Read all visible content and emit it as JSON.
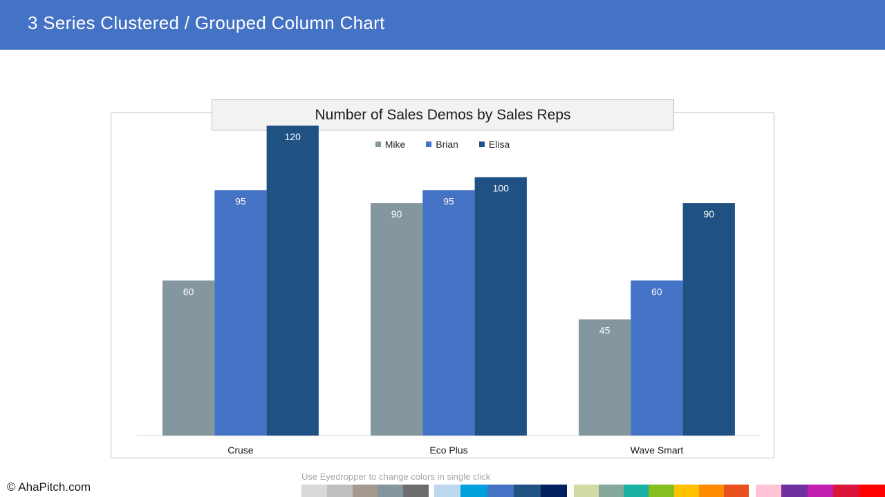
{
  "header": {
    "title": "3 Series Clustered / Grouped Column Chart"
  },
  "footer": {
    "copyright": "© AhaPitch.com",
    "eyedropper_note": "Use Eyedropper to change colors in single click"
  },
  "colors": {
    "header_bg": "#4472c4",
    "mike": "#85979e",
    "brian": "#4472c4",
    "elisa": "#1f5283"
  },
  "palette": [
    "#d9d9d9",
    "#bfbfbf",
    "#a5998e",
    "#85979e",
    "#6d6d6d",
    "#bdd7ee",
    "#00a0dc",
    "#4472c4",
    "#1f5283",
    "#002060",
    "#d3d9a5",
    "#85a89b",
    "#1ab1a5",
    "#85be1f",
    "#ffc000",
    "#ff8c00",
    "#e8501e",
    "#ffc4d6",
    "#7030a0",
    "#c11fb1",
    "#dc143c",
    "#ff0000"
  ],
  "chart_data": {
    "type": "bar",
    "title": "Number of Sales Demos by Sales Reps",
    "categories": [
      "Cruse",
      "Eco Plus",
      "Wave Smart"
    ],
    "series": [
      {
        "name": "Mike",
        "values": [
          60,
          90,
          45
        ],
        "color": "#85979e"
      },
      {
        "name": "Brian",
        "values": [
          95,
          95,
          60
        ],
        "color": "#4472c4"
      },
      {
        "name": "Elisa",
        "values": [
          120,
          100,
          90
        ],
        "color": "#1f5283"
      }
    ],
    "ylim": [
      0,
      140
    ],
    "legend": "top-center",
    "grid": false,
    "data_labels": true
  }
}
